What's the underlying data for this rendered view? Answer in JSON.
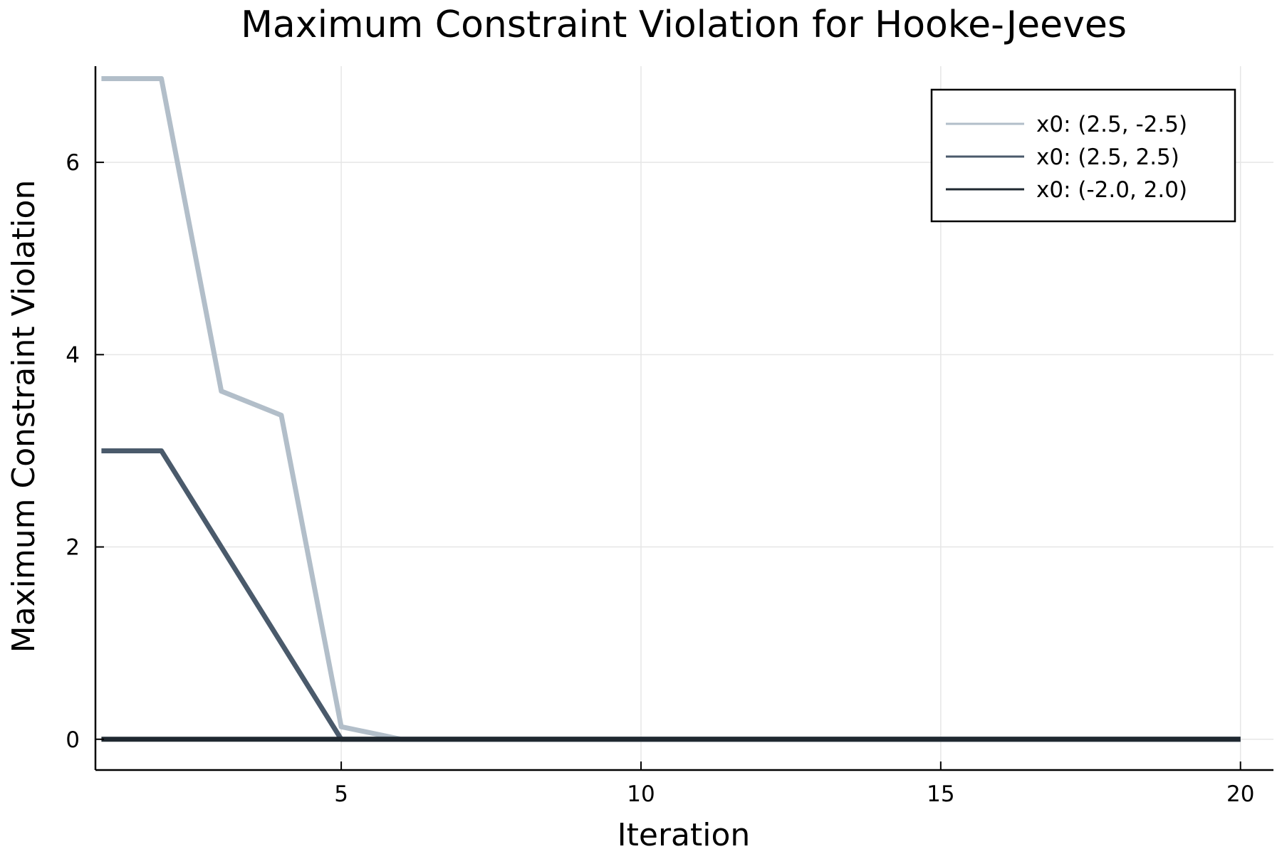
{
  "chart_data": {
    "type": "line",
    "title": "Maximum Constraint Violation for Hooke-Jeeves",
    "xlabel": "Iteration",
    "ylabel": "Maximum Constraint Violation",
    "xlim": [
      0.9,
      20.55
    ],
    "ylim": [
      -0.32,
      7.0
    ],
    "xticks": [
      5,
      10,
      15,
      20
    ],
    "yticks": [
      0,
      2,
      4,
      6
    ],
    "xtick_labels": [
      "5",
      "10",
      "15",
      "20"
    ],
    "ytick_labels": [
      "0",
      "2",
      "4",
      "6"
    ],
    "grid": true,
    "legend_position": "top-right",
    "series": [
      {
        "name": "x0: (2.5, -2.5)",
        "color": "#b2bec9",
        "x": [
          1,
          2,
          3,
          4,
          5,
          6,
          7,
          8,
          9,
          10,
          11,
          12,
          13,
          14,
          15,
          16,
          17,
          18,
          19,
          20
        ],
        "values": [
          6.87,
          6.87,
          3.62,
          3.37,
          0.13,
          0.0,
          0.0,
          0.0,
          0.0,
          0.0,
          0.0,
          0.0,
          0.0,
          0.0,
          0.0,
          0.0,
          0.0,
          0.0,
          0.0,
          0.0
        ]
      },
      {
        "name": "x0: (2.5, 2.5)",
        "color": "#4a5a6b",
        "x": [
          1,
          2,
          3,
          4,
          5,
          6,
          7,
          8,
          9,
          10,
          11,
          12,
          13,
          14,
          15,
          16,
          17,
          18,
          19,
          20
        ],
        "values": [
          3.0,
          3.0,
          2.0,
          1.0,
          0.0,
          0.0,
          0.0,
          0.0,
          0.0,
          0.0,
          0.0,
          0.0,
          0.0,
          0.0,
          0.0,
          0.0,
          0.0,
          0.0,
          0.0,
          0.0
        ]
      },
      {
        "name": "x0: (-2.0, 2.0)",
        "color": "#1f2830",
        "x": [
          1,
          2,
          3,
          4,
          5,
          6,
          7,
          8,
          9,
          10,
          11,
          12,
          13,
          14,
          15,
          16,
          17,
          18,
          19,
          20
        ],
        "values": [
          0.0,
          0.0,
          0.0,
          0.0,
          0.0,
          0.0,
          0.0,
          0.0,
          0.0,
          0.0,
          0.0,
          0.0,
          0.0,
          0.0,
          0.0,
          0.0,
          0.0,
          0.0,
          0.0,
          0.0
        ]
      }
    ]
  }
}
